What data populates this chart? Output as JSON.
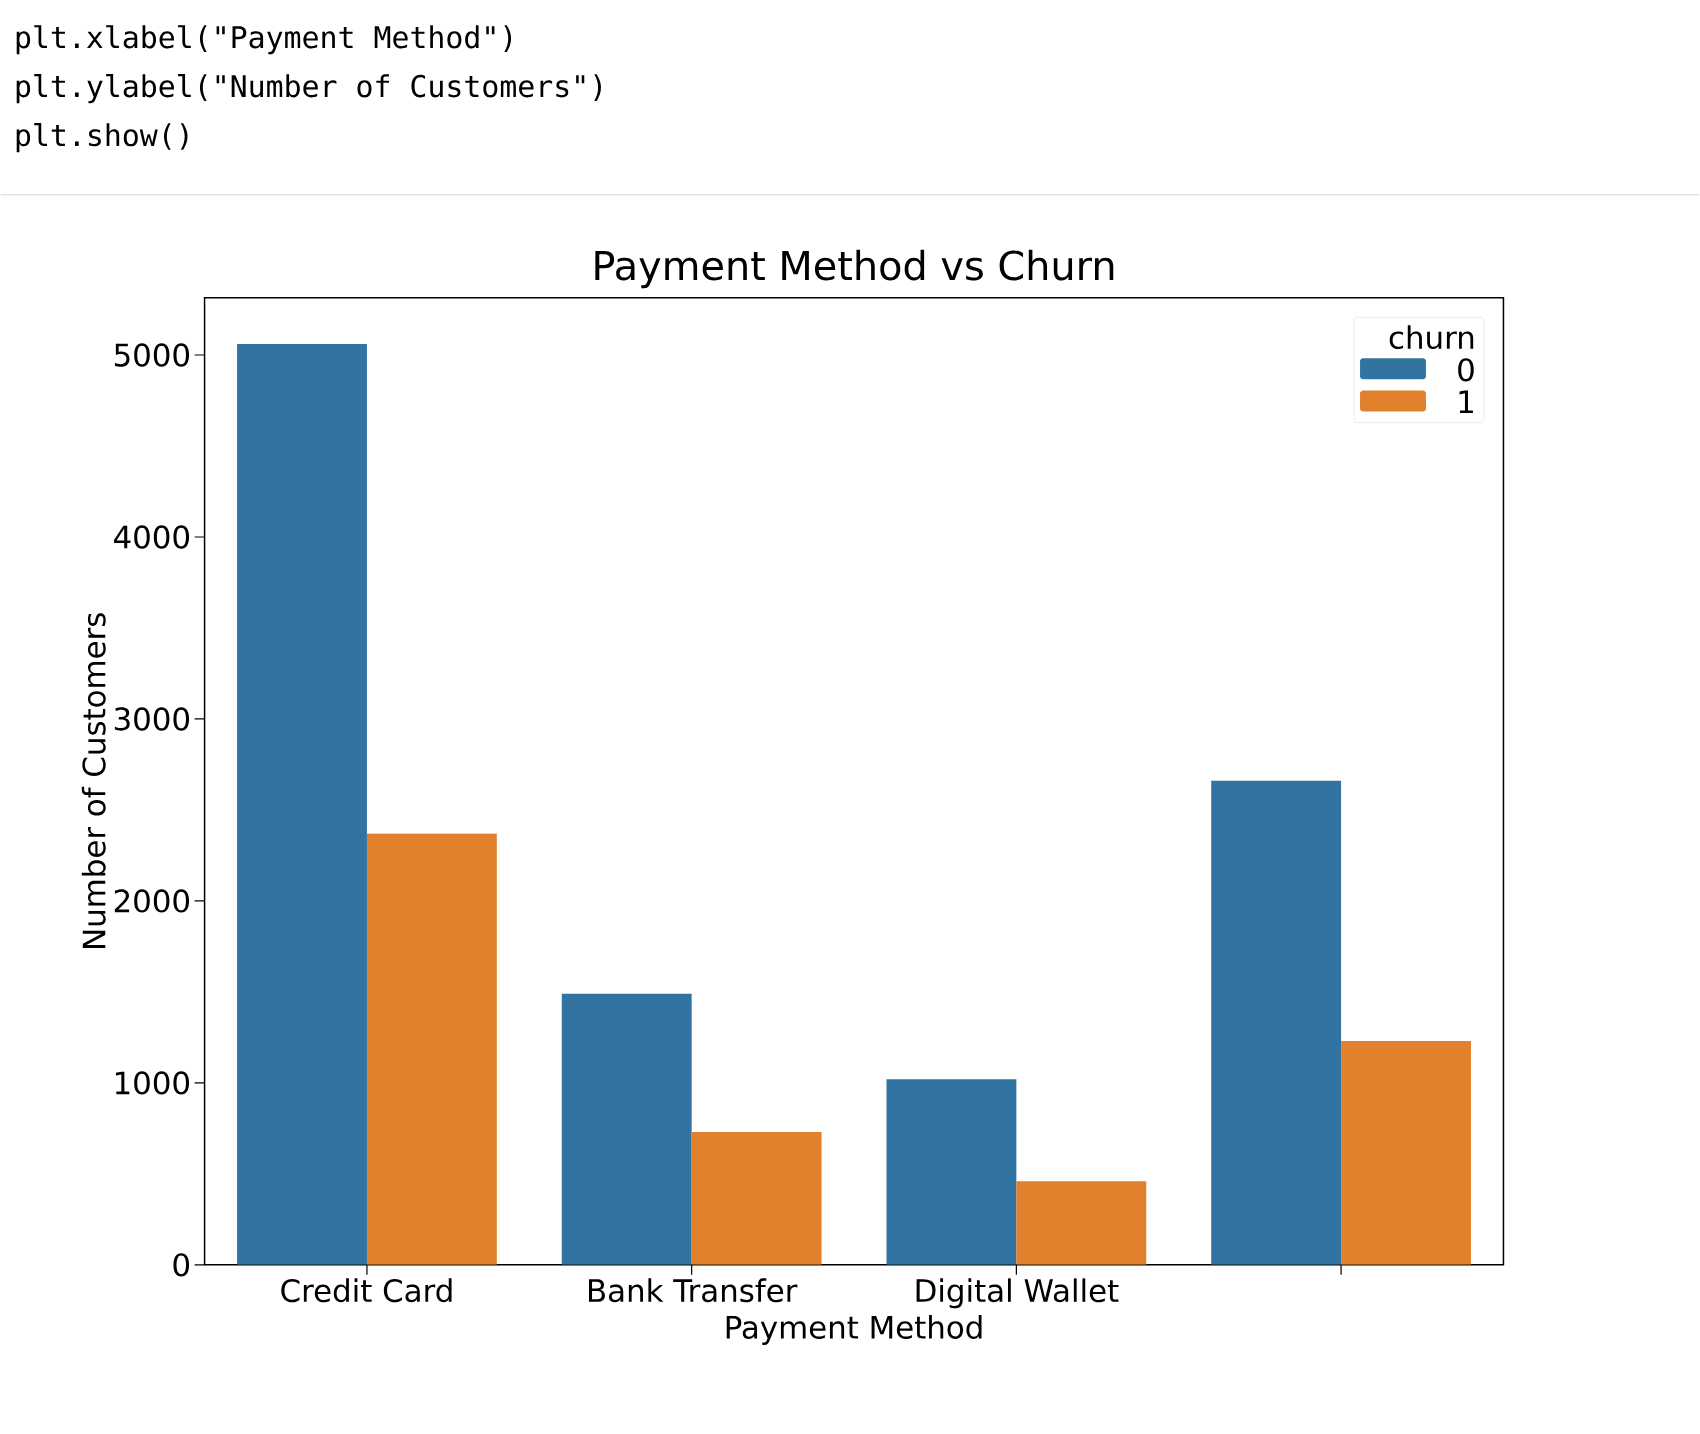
{
  "chart_data": {
    "type": "bar",
    "title": "Payment Method vs Churn",
    "xlabel": "Payment Method",
    "ylabel": "Number of Customers",
    "annotations": [
      "plt.xlabel(\"Payment Method\")",
      "plt.ylabel(\"Number of Customers\")",
      "plt.show()"
    ],
    "categories": [
      "Credit Card",
      "Bank Transfer",
      "Digital Wallet",
      null
    ],
    "series": [
      {
        "name": "0",
        "color": "#3274a1",
        "values": [
          5060,
          1490,
          1020,
          2660
        ]
      },
      {
        "name": "1",
        "color": "#e1812c",
        "values": [
          2370,
          730,
          460,
          1230
        ]
      }
    ],
    "ylim": [
      0,
      5315
    ],
    "yticks": [
      0,
      1000,
      2000,
      3000,
      4000,
      5000
    ],
    "legend": "top right",
    "legend_title": "churn"
  }
}
